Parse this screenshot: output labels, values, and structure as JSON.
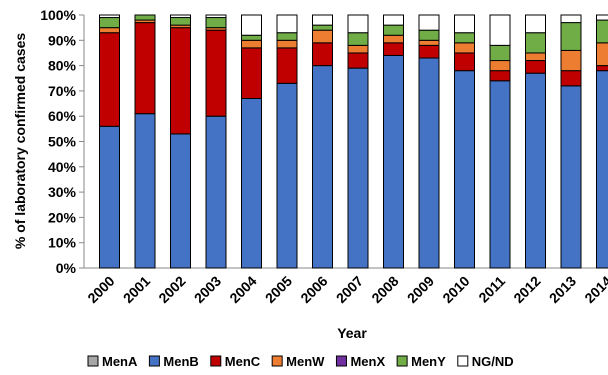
{
  "chart_data": {
    "type": "bar",
    "stacked": true,
    "xlabel": "Year",
    "ylabel": "% of laboratory confirmed cases",
    "ylim": [
      0,
      100
    ],
    "yticks": [
      "0%",
      "10%",
      "20%",
      "30%",
      "40%",
      "50%",
      "60%",
      "70%",
      "80%",
      "90%",
      "100%"
    ],
    "categories": [
      "2000",
      "2001",
      "2002",
      "2003",
      "2004",
      "2005",
      "2006",
      "2007",
      "2008",
      "2009",
      "2010",
      "2011",
      "2012",
      "2013",
      "2014"
    ],
    "legend_position": "bottom",
    "grid": false,
    "series": [
      {
        "name": "MenA",
        "color": "#a6a6a6",
        "values": [
          0,
          0,
          0,
          0,
          0,
          0,
          0,
          0,
          0,
          0,
          0,
          0,
          0,
          0,
          0
        ]
      },
      {
        "name": "MenB",
        "color": "#4472c4",
        "values": [
          56,
          61,
          53,
          60,
          67,
          73,
          80,
          79,
          84,
          83,
          78,
          74,
          77,
          72,
          78
        ]
      },
      {
        "name": "MenC",
        "color": "#c00000",
        "values": [
          37,
          36,
          42,
          34,
          20,
          14,
          9,
          6,
          5,
          5,
          7,
          4,
          5,
          6,
          2
        ]
      },
      {
        "name": "MenW",
        "color": "#ed7d31",
        "values": [
          2,
          1,
          1,
          1,
          3,
          3,
          5,
          3,
          3,
          2,
          4,
          4,
          3,
          8,
          9
        ]
      },
      {
        "name": "MenX",
        "color": "#7030a0",
        "values": [
          0,
          0,
          0,
          0,
          0,
          0,
          0,
          0,
          0,
          0,
          0,
          0,
          0,
          0,
          0
        ]
      },
      {
        "name": "MenY",
        "color": "#70ad47",
        "values": [
          4,
          2,
          3,
          4,
          2,
          3,
          2,
          5,
          4,
          4,
          4,
          6,
          8,
          11,
          9
        ]
      },
      {
        "name": "NG/ND",
        "color": "#ffffff",
        "values": [
          1,
          0,
          1,
          1,
          8,
          7,
          4,
          7,
          4,
          6,
          7,
          12,
          7,
          3,
          2
        ]
      }
    ]
  }
}
